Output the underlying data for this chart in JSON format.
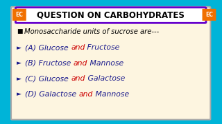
{
  "title": "QUESTION ON CARBOHYDRATES",
  "bg_outer": "#00b4d8",
  "bg_inner": "#fdf5e0",
  "title_bg": "#ffffff",
  "title_border": "#6600cc",
  "ec_bg": "#f07000",
  "ec_text": "EC",
  "question": "Monosaccharide units of sucrose are---",
  "options": [
    [
      "(A) Glucose ",
      "and",
      " Fructose"
    ],
    [
      "(B) Fructose ",
      "and",
      " Mannose"
    ],
    [
      "(C) Glucose ",
      "and",
      " Galactose"
    ],
    [
      "(D) Galactose ",
      "and",
      " Mannose"
    ]
  ],
  "dark_blue": "#1a1a8c",
  "red": "#cc0000",
  "title_fontsize": 8.5,
  "question_fontsize": 7.2,
  "option_fontsize": 7.8
}
